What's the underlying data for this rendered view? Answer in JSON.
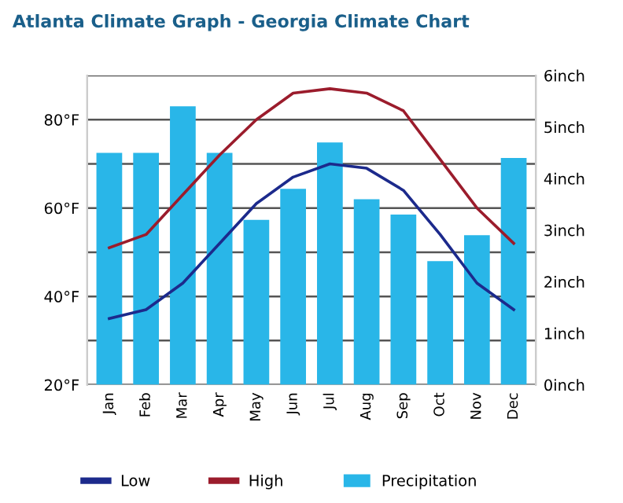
{
  "chart_data": {
    "type": "line",
    "title": "Atlanta Climate Graph - Georgia Climate Chart",
    "categories": [
      "Jan",
      "Feb",
      "Mar",
      "Apr",
      "May",
      "Jun",
      "Jul",
      "Aug",
      "Sep",
      "Oct",
      "Nov",
      "Dec"
    ],
    "series": [
      {
        "name": "Low",
        "color": "#1c2a8c",
        "values": [
          35,
          37,
          43,
          52,
          61,
          67,
          70,
          69,
          64,
          54,
          43,
          37
        ]
      },
      {
        "name": "High",
        "color": "#9b1c2c",
        "values": [
          51,
          54,
          63,
          72,
          80,
          86,
          87,
          86,
          82,
          71,
          60,
          52
        ]
      },
      {
        "name": "Precipitation",
        "type": "bar",
        "axis": "y2",
        "color": "#29b6e8",
        "values": [
          4.5,
          4.5,
          5.4,
          4.5,
          3.2,
          3.8,
          4.7,
          3.6,
          3.3,
          2.4,
          2.9,
          4.4
        ]
      }
    ],
    "ylim": [
      20,
      90
    ],
    "yticks": [
      {
        "value": 20,
        "label": "20°F"
      },
      {
        "value": 30,
        "label": null
      },
      {
        "value": 40,
        "label": "40°F"
      },
      {
        "value": 50,
        "label": null
      },
      {
        "value": 60,
        "label": "60°F"
      },
      {
        "value": 70,
        "label": null
      },
      {
        "value": 80,
        "label": "80°F"
      },
      {
        "value": 90,
        "label": null
      }
    ],
    "y2lim": [
      0,
      6
    ],
    "y2ticks": [
      {
        "value": 0,
        "label": "0inch"
      },
      {
        "value": 1,
        "label": "1inch"
      },
      {
        "value": 2,
        "label": "2inch"
      },
      {
        "value": 3,
        "label": "3inch"
      },
      {
        "value": 4,
        "label": "4inch"
      },
      {
        "value": 5,
        "label": "5inch"
      },
      {
        "value": 6,
        "label": "6inch"
      }
    ],
    "grid": "y",
    "legend": "bottom",
    "marker": "none"
  }
}
